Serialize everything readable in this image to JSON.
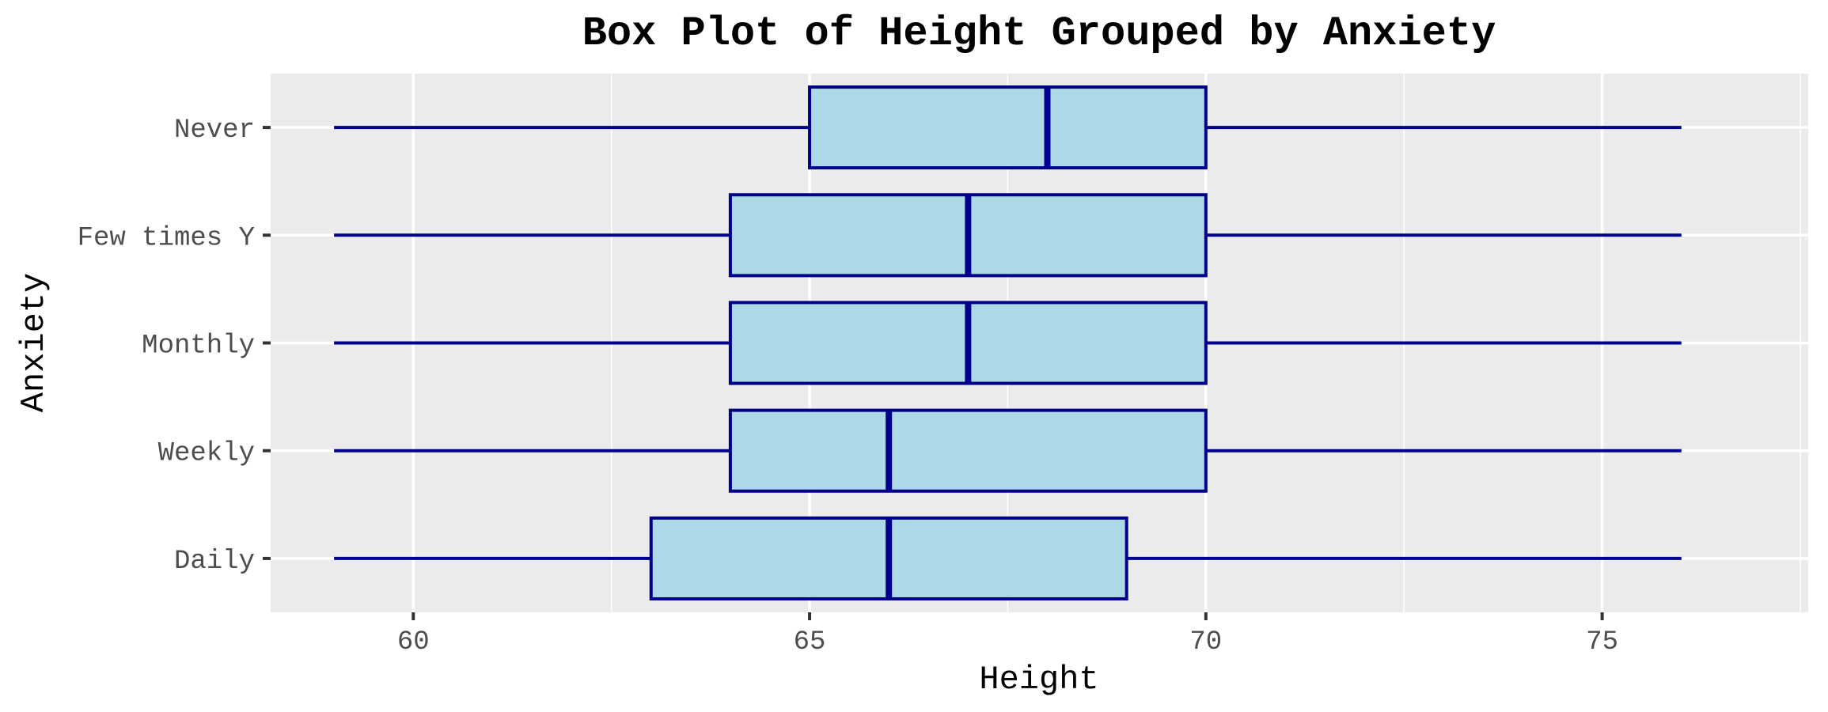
{
  "chart_data": {
    "type": "box",
    "title": "Box Plot of Height Grouped by Anxiety",
    "xlabel": "Height",
    "ylabel": "Anxiety",
    "xlim": [
      58.2,
      77.6
    ],
    "x_ticks": [
      60,
      65,
      70,
      75
    ],
    "grid": true,
    "legend": "none",
    "colors": {
      "panel": "#ebebeb",
      "grid": "#ffffff",
      "box_fill": "#add8e6",
      "box_stroke": "#00008b",
      "tick_mark": "#333333"
    },
    "categories": [
      "Never",
      "Few times Y",
      "Monthly",
      "Weekly",
      "Daily"
    ],
    "boxes": [
      {
        "category": "Never",
        "min": 59,
        "q1": 65,
        "median": 68,
        "q3": 70,
        "max": 76
      },
      {
        "category": "Few times Y",
        "min": 59,
        "q1": 64,
        "median": 67,
        "q3": 70,
        "max": 76
      },
      {
        "category": "Monthly",
        "min": 59,
        "q1": 64,
        "median": 67,
        "q3": 70,
        "max": 76
      },
      {
        "category": "Weekly",
        "min": 59,
        "q1": 64,
        "median": 66,
        "q3": 70,
        "max": 76
      },
      {
        "category": "Daily",
        "min": 59,
        "q1": 63,
        "median": 66,
        "q3": 69,
        "max": 76
      }
    ]
  }
}
